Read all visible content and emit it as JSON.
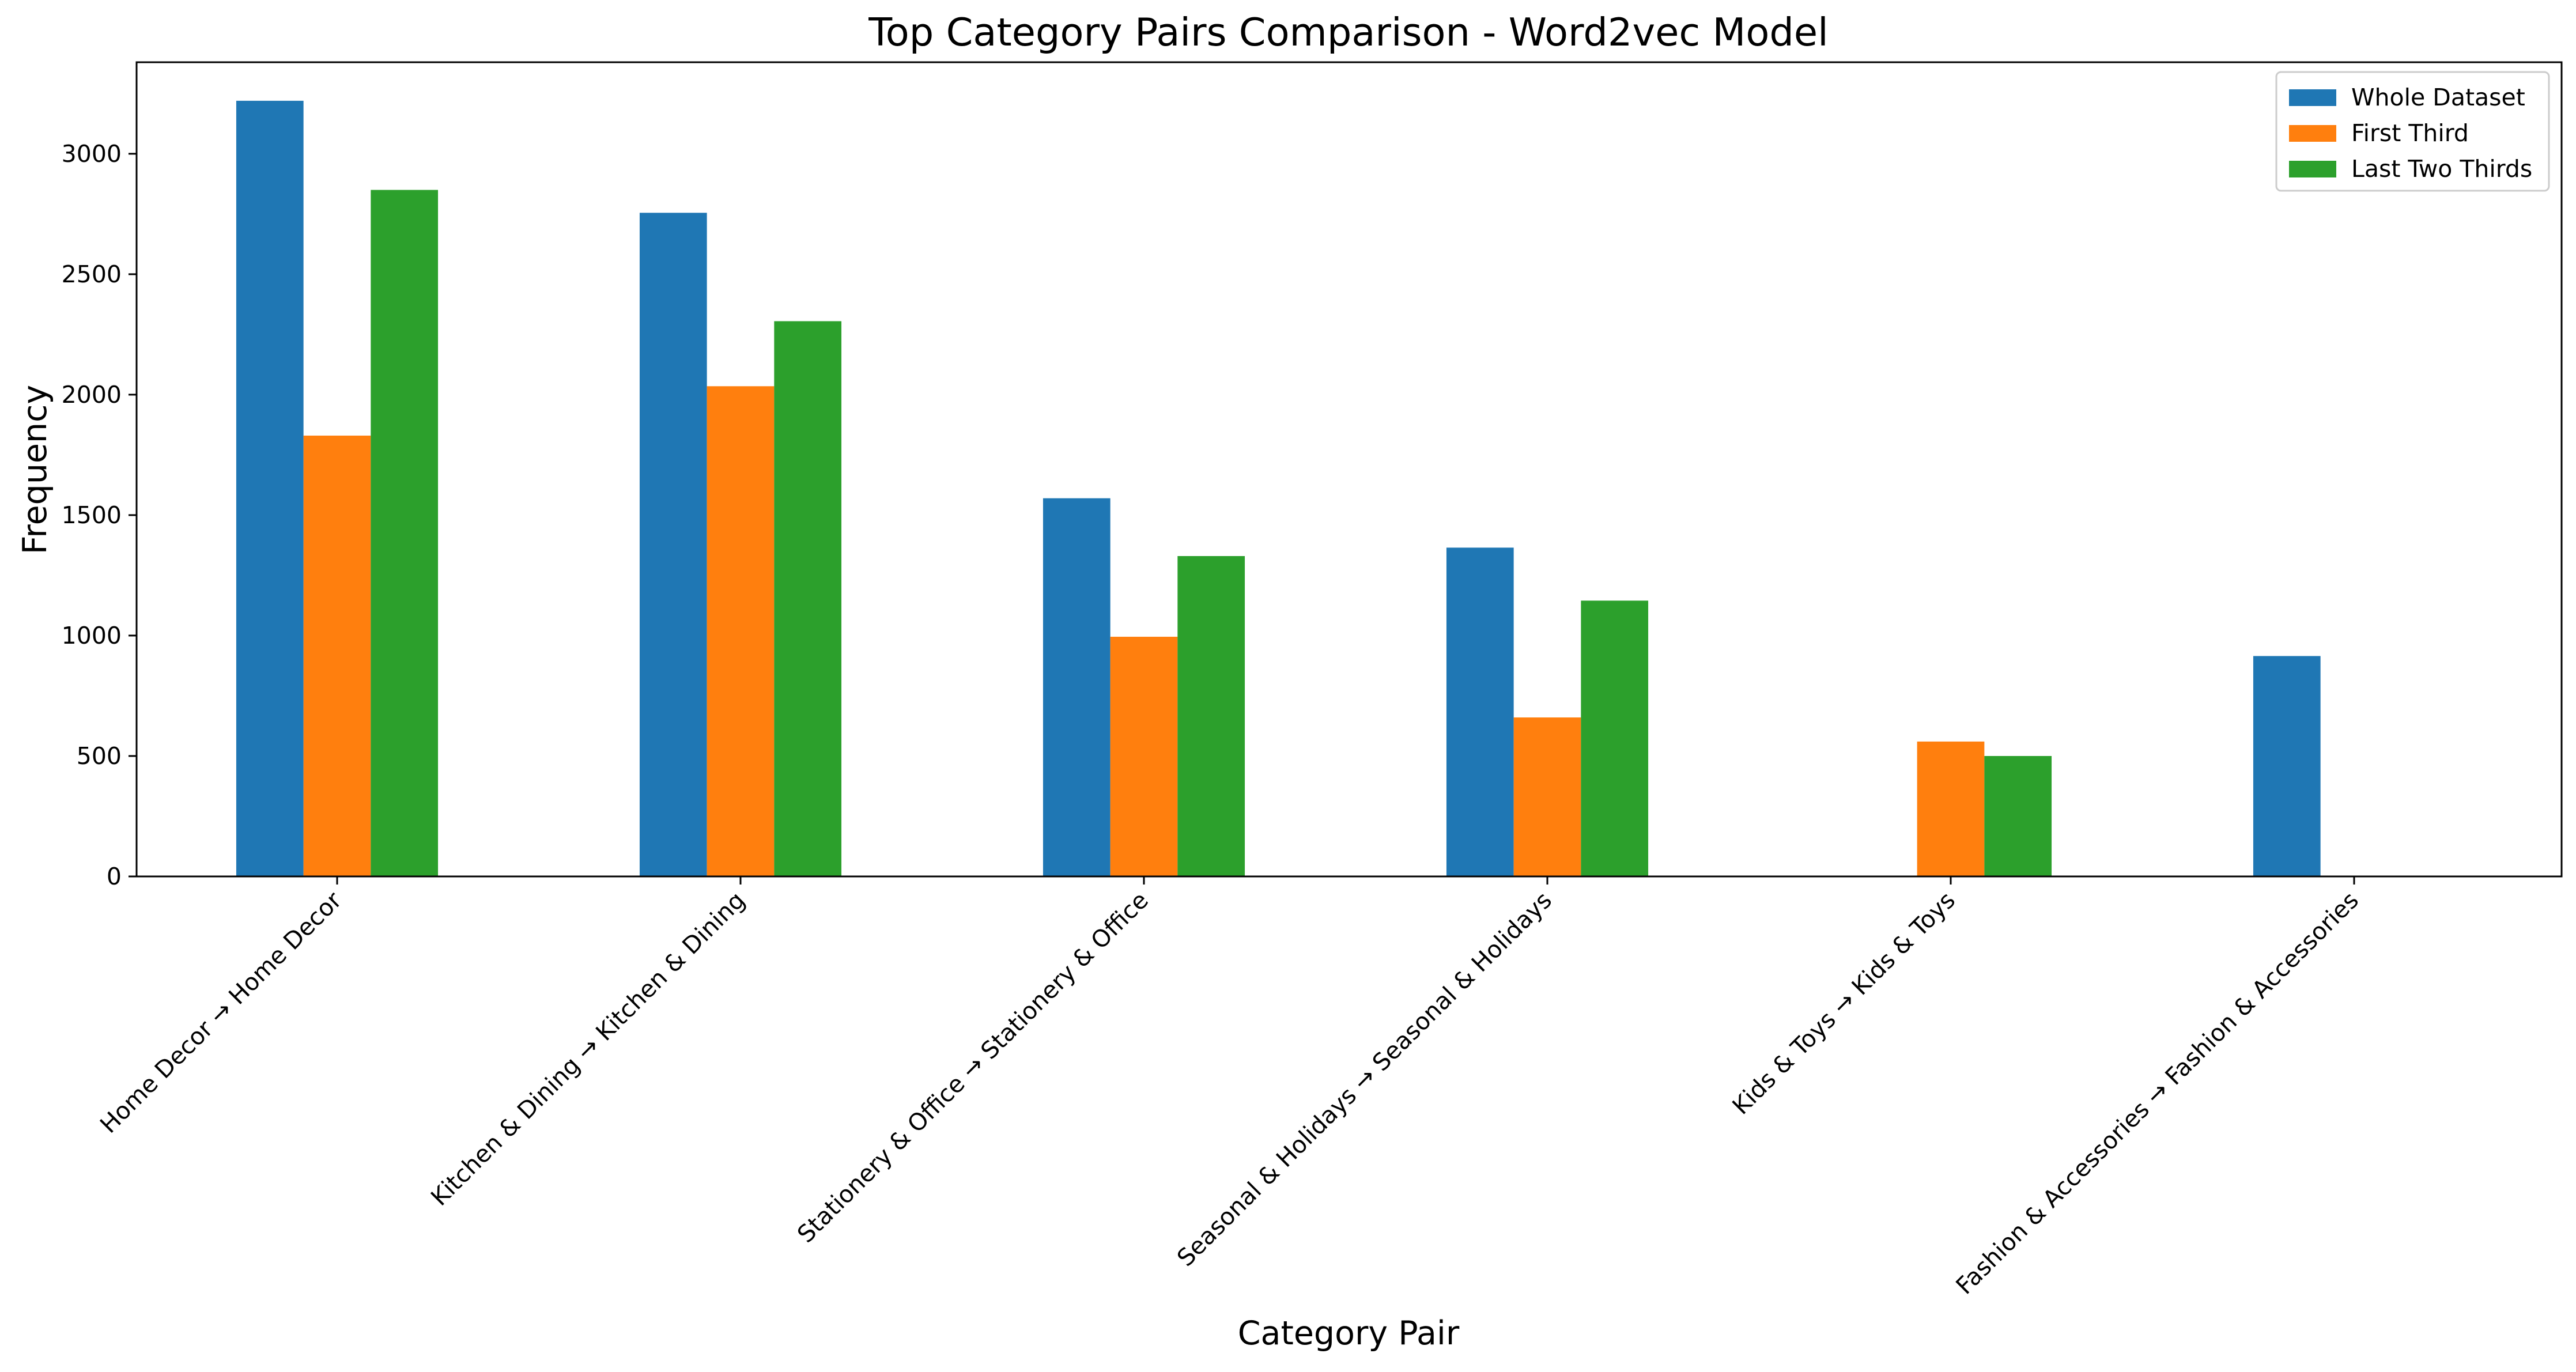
{
  "chart_data": {
    "type": "bar",
    "title": "Top Category Pairs Comparison - Word2vec Model",
    "xlabel": "Category Pair",
    "ylabel": "Frequency",
    "ylim": [
      0,
      3380
    ],
    "yticks": [
      0,
      500,
      1000,
      1500,
      2000,
      2500,
      3000
    ],
    "grid": false,
    "legend_position": "top-right",
    "categories": [
      "Home Decor → Home Decor",
      "Kitchen & Dining → Kitchen & Dining",
      "Stationery & Office → Stationery & Office",
      "Seasonal & Holidays → Seasonal & Holidays",
      "Kids & Toys → Kids & Toys",
      "Fashion & Accessories → Fashion & Accessories"
    ],
    "series": [
      {
        "name": "Whole Dataset",
        "color": "#1f77b4",
        "values": [
          3220,
          2755,
          1570,
          1365,
          0,
          915
        ]
      },
      {
        "name": "First Third",
        "color": "#ff7f0e",
        "values": [
          1830,
          2035,
          995,
          660,
          560,
          0
        ]
      },
      {
        "name": "Last Two Thirds",
        "color": "#2ca02c",
        "values": [
          2850,
          2305,
          1330,
          1145,
          500,
          0
        ]
      }
    ]
  }
}
